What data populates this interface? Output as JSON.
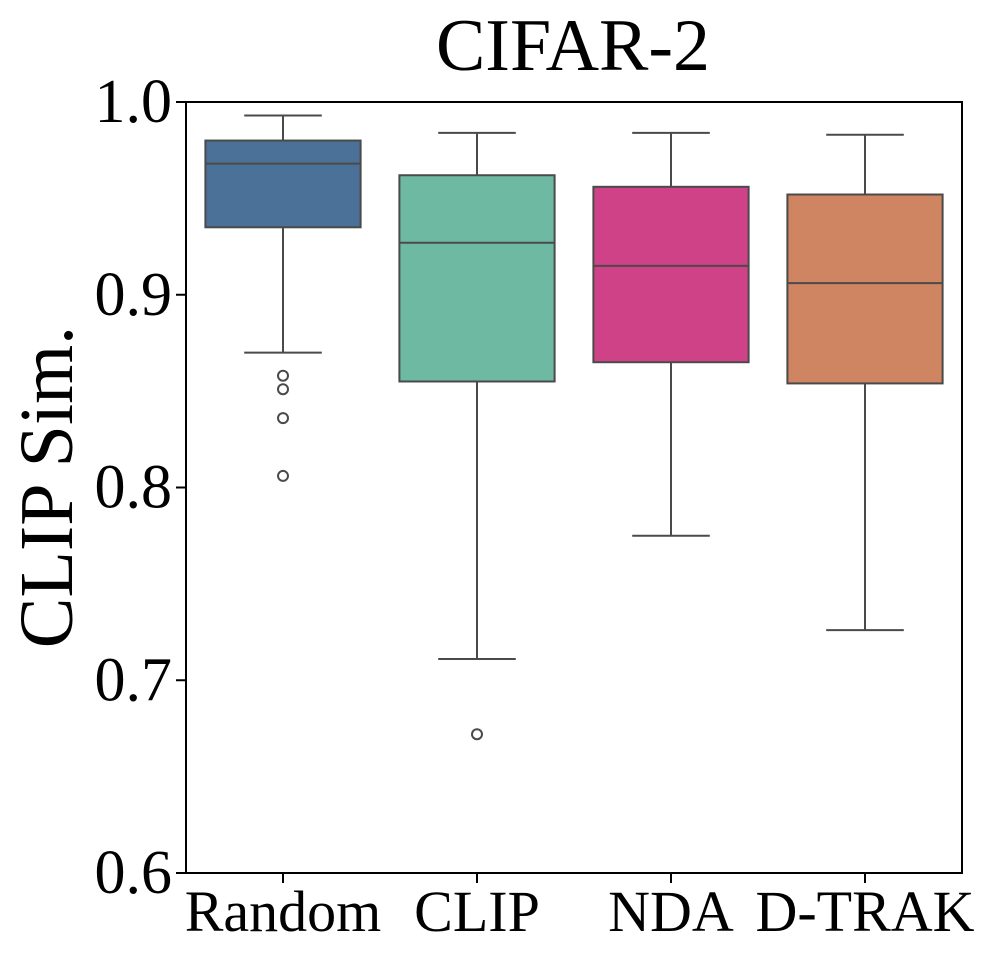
{
  "chart_data": {
    "type": "box",
    "title": "CIFAR-2",
    "xlabel": "",
    "ylabel": "CLIP Sim.",
    "ylim": [
      0.6,
      1.0
    ],
    "yticks": [
      0.6,
      0.7,
      0.8,
      0.9,
      1.0
    ],
    "ytick_labels": [
      "0.6",
      "0.7",
      "0.8",
      "0.9",
      "1.0"
    ],
    "categories": [
      "Random",
      "CLIP",
      "NDA",
      "D-TRAK"
    ],
    "grid": false,
    "series": [
      {
        "name": "Random",
        "color": "#4c7198",
        "whisker_low": 0.87,
        "q1": 0.935,
        "median": 0.968,
        "q3": 0.98,
        "whisker_high": 0.993,
        "outliers": [
          0.858,
          0.851,
          0.836,
          0.806
        ]
      },
      {
        "name": "CLIP",
        "color": "#6eb9a2",
        "whisker_low": 0.711,
        "q1": 0.855,
        "median": 0.927,
        "q3": 0.962,
        "whisker_high": 0.984,
        "outliers": [
          0.672
        ]
      },
      {
        "name": "NDA",
        "color": "#d04287",
        "whisker_low": 0.775,
        "q1": 0.865,
        "median": 0.915,
        "q3": 0.956,
        "whisker_high": 0.984,
        "outliers": []
      },
      {
        "name": "D-TRAK",
        "color": "#cf8462",
        "whisker_low": 0.726,
        "q1": 0.854,
        "median": 0.906,
        "q3": 0.952,
        "whisker_high": 0.983,
        "outliers": []
      }
    ]
  }
}
